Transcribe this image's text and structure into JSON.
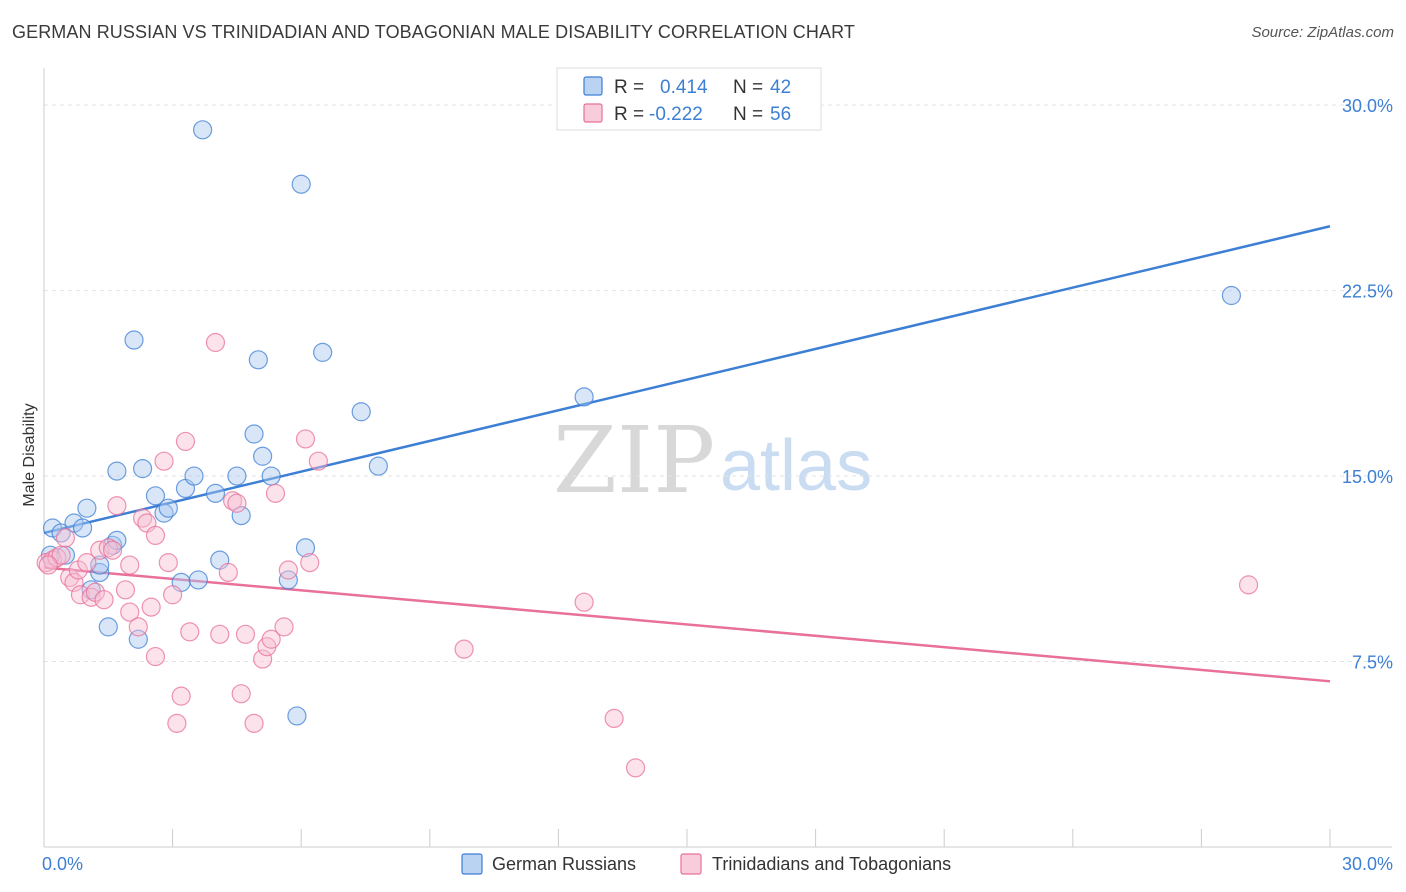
{
  "header": {
    "title": "GERMAN RUSSIAN VS TRINIDADIAN AND TOBAGONIAN MALE DISABILITY CORRELATION CHART",
    "source": "Source: ZipAtlas.com"
  },
  "watermark": {
    "zip": "ZIP",
    "atlas": "atlas"
  },
  "colors": {
    "blue": "#3d7fd4",
    "blue_fill": "#a9c8ef",
    "pink": "#e8709a",
    "pink_fill": "#f6bfd2",
    "grid": "#e3e3e3",
    "axis_text": "#3d7fd4"
  },
  "legend": {
    "rows": [
      {
        "r_label": "R =",
        "r_value": "0.414",
        "n_label": "N =",
        "n_value": "42"
      },
      {
        "r_label": "R =",
        "r_value": "-0.222",
        "n_label": "N =",
        "n_value": "56"
      }
    ]
  },
  "bottom_legend": {
    "items": [
      "German Russians",
      "Trinidadians and Tobagonians"
    ]
  },
  "chart_data": {
    "type": "scatter",
    "ylabel": "Male Disability",
    "xlim": [
      0,
      30
    ],
    "ylim": [
      0,
      31.5
    ],
    "y_ticks": [
      {
        "value": 7.5,
        "label": "7.5%"
      },
      {
        "value": 15.0,
        "label": "15.0%"
      },
      {
        "value": 22.5,
        "label": "22.5%"
      },
      {
        "value": 30.0,
        "label": "30.0%"
      }
    ],
    "x_tick_labels": [
      {
        "value": 0,
        "label": "0.0%"
      },
      {
        "value": 30,
        "label": "30.0%"
      }
    ],
    "grid": "horizontal dashed",
    "legend_position": "top-center",
    "series": [
      {
        "name": "German Russians",
        "color": "#3d7fd4",
        "trend": {
          "x": [
            0,
            30
          ],
          "y": [
            12.7,
            25.1
          ]
        },
        "points": [
          [
            0.2,
            12.9
          ],
          [
            0.4,
            12.7
          ],
          [
            0.5,
            11.8
          ],
          [
            0.7,
            13.1
          ],
          [
            0.9,
            12.9
          ],
          [
            1.0,
            13.7
          ],
          [
            1.1,
            10.4
          ],
          [
            1.3,
            11.1
          ],
          [
            1.3,
            11.4
          ],
          [
            1.5,
            8.9
          ],
          [
            1.6,
            12.2
          ],
          [
            1.7,
            12.4
          ],
          [
            1.7,
            15.2
          ],
          [
            2.1,
            20.5
          ],
          [
            2.2,
            8.4
          ],
          [
            2.3,
            15.3
          ],
          [
            2.6,
            14.2
          ],
          [
            2.8,
            13.5
          ],
          [
            2.9,
            13.7
          ],
          [
            3.2,
            10.7
          ],
          [
            3.3,
            14.5
          ],
          [
            3.5,
            15.0
          ],
          [
            3.6,
            10.8
          ],
          [
            3.7,
            29.0
          ],
          [
            4.0,
            14.3
          ],
          [
            4.1,
            11.6
          ],
          [
            4.5,
            15.0
          ],
          [
            4.6,
            13.4
          ],
          [
            4.9,
            16.7
          ],
          [
            5.0,
            19.7
          ],
          [
            5.1,
            15.8
          ],
          [
            5.3,
            15.0
          ],
          [
            5.7,
            10.8
          ],
          [
            5.9,
            5.3
          ],
          [
            6.0,
            26.8
          ],
          [
            6.1,
            12.1
          ],
          [
            6.5,
            20.0
          ],
          [
            7.4,
            17.6
          ],
          [
            7.8,
            15.4
          ],
          [
            12.6,
            18.2
          ],
          [
            27.7,
            22.3
          ],
          [
            0.15,
            11.8
          ]
        ]
      },
      {
        "name": "Trinidadians and Tobagonians",
        "color": "#e8709a",
        "trend": {
          "x": [
            0,
            30
          ],
          "y": [
            11.3,
            6.7
          ]
        },
        "points": [
          [
            0.05,
            11.5
          ],
          [
            0.2,
            11.6
          ],
          [
            0.3,
            11.7
          ],
          [
            0.4,
            11.8
          ],
          [
            0.5,
            12.5
          ],
          [
            0.6,
            10.9
          ],
          [
            0.7,
            10.7
          ],
          [
            0.8,
            11.2
          ],
          [
            0.85,
            10.2
          ],
          [
            1.0,
            11.5
          ],
          [
            1.1,
            10.1
          ],
          [
            1.2,
            10.3
          ],
          [
            1.3,
            12.0
          ],
          [
            1.4,
            10.0
          ],
          [
            1.5,
            12.1
          ],
          [
            1.6,
            12.0
          ],
          [
            1.7,
            13.8
          ],
          [
            1.9,
            10.4
          ],
          [
            2.0,
            9.5
          ],
          [
            2.0,
            11.4
          ],
          [
            2.2,
            8.9
          ],
          [
            2.3,
            13.3
          ],
          [
            2.4,
            13.1
          ],
          [
            2.5,
            9.7
          ],
          [
            2.6,
            12.6
          ],
          [
            2.6,
            7.7
          ],
          [
            2.8,
            15.6
          ],
          [
            2.9,
            11.5
          ],
          [
            3.0,
            10.2
          ],
          [
            3.1,
            5.0
          ],
          [
            3.2,
            6.1
          ],
          [
            3.3,
            16.4
          ],
          [
            3.4,
            8.7
          ],
          [
            4.0,
            20.4
          ],
          [
            4.1,
            8.6
          ],
          [
            4.3,
            11.1
          ],
          [
            4.4,
            14.0
          ],
          [
            4.5,
            13.9
          ],
          [
            4.6,
            6.2
          ],
          [
            4.7,
            8.6
          ],
          [
            4.9,
            5.0
          ],
          [
            5.1,
            7.6
          ],
          [
            5.2,
            8.1
          ],
          [
            5.3,
            8.4
          ],
          [
            5.4,
            14.3
          ],
          [
            5.6,
            8.9
          ],
          [
            5.7,
            11.2
          ],
          [
            6.1,
            16.5
          ],
          [
            6.2,
            11.5
          ],
          [
            6.4,
            15.6
          ],
          [
            9.8,
            8.0
          ],
          [
            12.6,
            9.9
          ],
          [
            13.3,
            5.2
          ],
          [
            13.8,
            3.2
          ],
          [
            28.1,
            10.6
          ],
          [
            0.1,
            11.4
          ]
        ]
      }
    ]
  }
}
